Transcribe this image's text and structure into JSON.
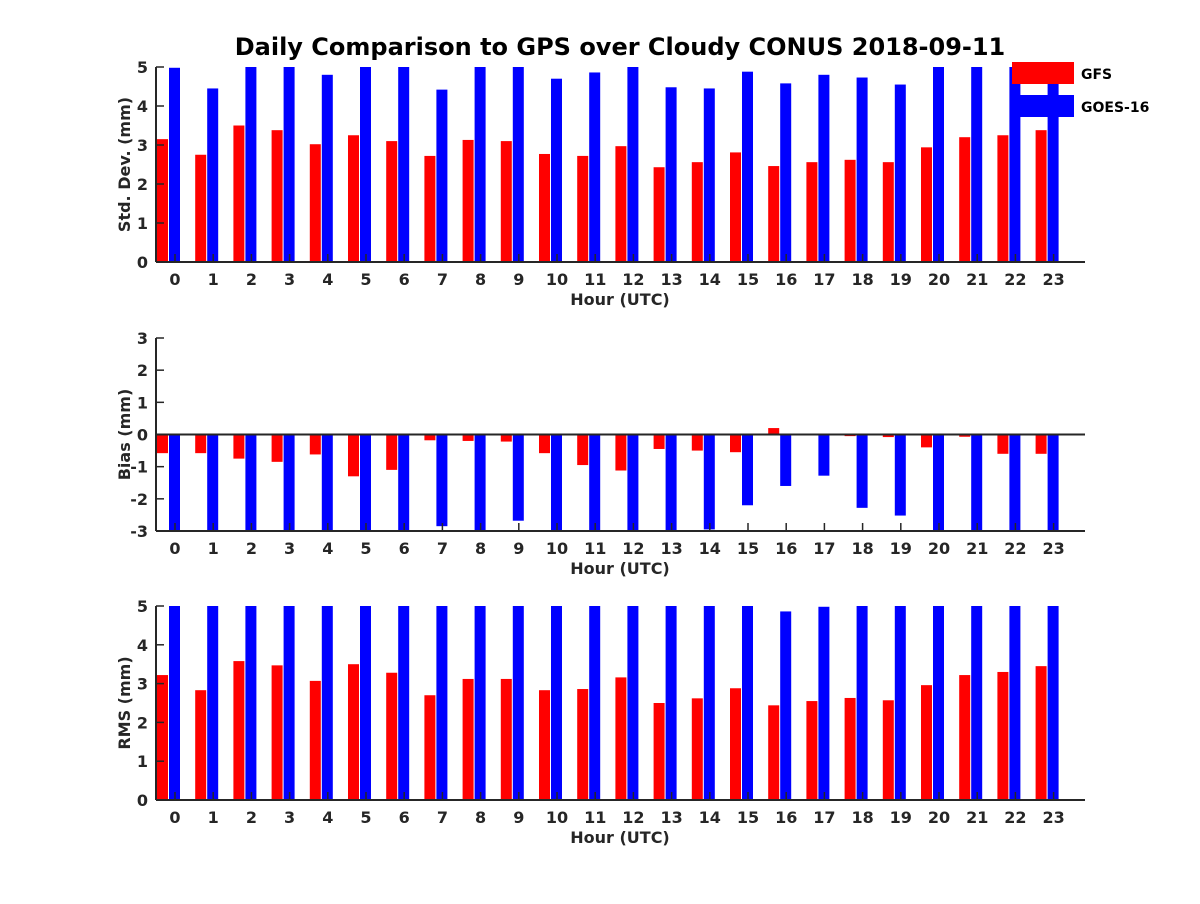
{
  "title": "Daily Comparison to GPS over Cloudy CONUS 2018-09-11",
  "colors": {
    "GFS": "#ff0000",
    "GOES-16": "#0000ff",
    "axis": "#262626"
  },
  "legend": {
    "placement": "top-right",
    "entries": [
      "GFS",
      "GOES-16"
    ]
  },
  "chart_data": [
    {
      "type": "bar",
      "id": "stddev",
      "categories": [
        "0",
        "1",
        "2",
        "3",
        "4",
        "5",
        "6",
        "7",
        "8",
        "9",
        "10",
        "11",
        "12",
        "13",
        "14",
        "15",
        "16",
        "17",
        "18",
        "19",
        "20",
        "21",
        "22",
        "23"
      ],
      "xlabel": "Hour (UTC)",
      "ylabel": "Std. Dev. (mm)",
      "ylim": [
        0,
        5
      ],
      "yticks": [
        0,
        1,
        2,
        3,
        4,
        5
      ],
      "grid": false,
      "series": [
        {
          "name": "GFS",
          "values": [
            3.15,
            2.75,
            3.5,
            3.38,
            3.02,
            3.25,
            3.1,
            2.72,
            3.13,
            3.1,
            2.77,
            2.72,
            2.97,
            2.43,
            2.56,
            2.81,
            2.46,
            2.56,
            2.62,
            2.56,
            2.94,
            3.2,
            3.25,
            3.38
          ]
        },
        {
          "name": "GOES-16",
          "values": [
            4.98,
            4.45,
            5.0,
            5.0,
            4.8,
            5.0,
            5.0,
            4.42,
            5.0,
            5.0,
            4.7,
            4.86,
            5.0,
            4.48,
            4.45,
            4.88,
            4.58,
            4.8,
            4.73,
            4.55,
            5.0,
            5.0,
            5.0,
            5.0
          ]
        }
      ]
    },
    {
      "type": "bar",
      "id": "bias",
      "categories": [
        "0",
        "1",
        "2",
        "3",
        "4",
        "5",
        "6",
        "7",
        "8",
        "9",
        "10",
        "11",
        "12",
        "13",
        "14",
        "15",
        "16",
        "17",
        "18",
        "19",
        "20",
        "21",
        "22",
        "23"
      ],
      "xlabel": "Hour (UTC)",
      "ylabel": "Bias (mm)",
      "ylim": [
        -3,
        3
      ],
      "yticks": [
        -3,
        -2,
        -1,
        0,
        1,
        2,
        3
      ],
      "grid": false,
      "zero_line": true,
      "series": [
        {
          "name": "GFS",
          "values": [
            -0.58,
            -0.58,
            -0.75,
            -0.85,
            -0.62,
            -1.3,
            -1.1,
            -0.18,
            -0.2,
            -0.22,
            -0.58,
            -0.95,
            -1.12,
            -0.45,
            -0.5,
            -0.55,
            0.2,
            0.0,
            -0.05,
            -0.08,
            -0.4,
            -0.07,
            -0.6,
            -0.6
          ]
        },
        {
          "name": "GOES-16",
          "values": [
            -3.0,
            -3.0,
            -3.0,
            -3.0,
            -3.0,
            -3.0,
            -3.0,
            -2.85,
            -3.0,
            -2.68,
            -3.0,
            -3.0,
            -3.0,
            -3.0,
            -2.95,
            -2.2,
            -1.6,
            -1.28,
            -2.28,
            -2.52,
            -3.0,
            -3.0,
            -3.0,
            -3.0
          ]
        }
      ]
    },
    {
      "type": "bar",
      "id": "rms",
      "categories": [
        "0",
        "1",
        "2",
        "3",
        "4",
        "5",
        "6",
        "7",
        "8",
        "9",
        "10",
        "11",
        "12",
        "13",
        "14",
        "15",
        "16",
        "17",
        "18",
        "19",
        "20",
        "21",
        "22",
        "23"
      ],
      "xlabel": "Hour (UTC)",
      "ylabel": "RMS (mm)",
      "ylim": [
        0,
        5
      ],
      "yticks": [
        0,
        1,
        2,
        3,
        4,
        5
      ],
      "grid": false,
      "series": [
        {
          "name": "GFS",
          "values": [
            3.22,
            2.83,
            3.58,
            3.47,
            3.07,
            3.5,
            3.28,
            2.7,
            3.12,
            3.12,
            2.83,
            2.86,
            3.16,
            2.5,
            2.62,
            2.88,
            2.44,
            2.55,
            2.63,
            2.57,
            2.96,
            3.22,
            3.3,
            3.45
          ]
        },
        {
          "name": "GOES-16",
          "values": [
            5.0,
            5.0,
            5.0,
            5.0,
            5.0,
            5.0,
            5.0,
            5.0,
            5.0,
            5.0,
            5.0,
            5.0,
            5.0,
            5.0,
            5.0,
            5.0,
            4.86,
            4.98,
            5.0,
            5.0,
            5.0,
            5.0,
            5.0,
            5.0
          ]
        }
      ]
    }
  ]
}
